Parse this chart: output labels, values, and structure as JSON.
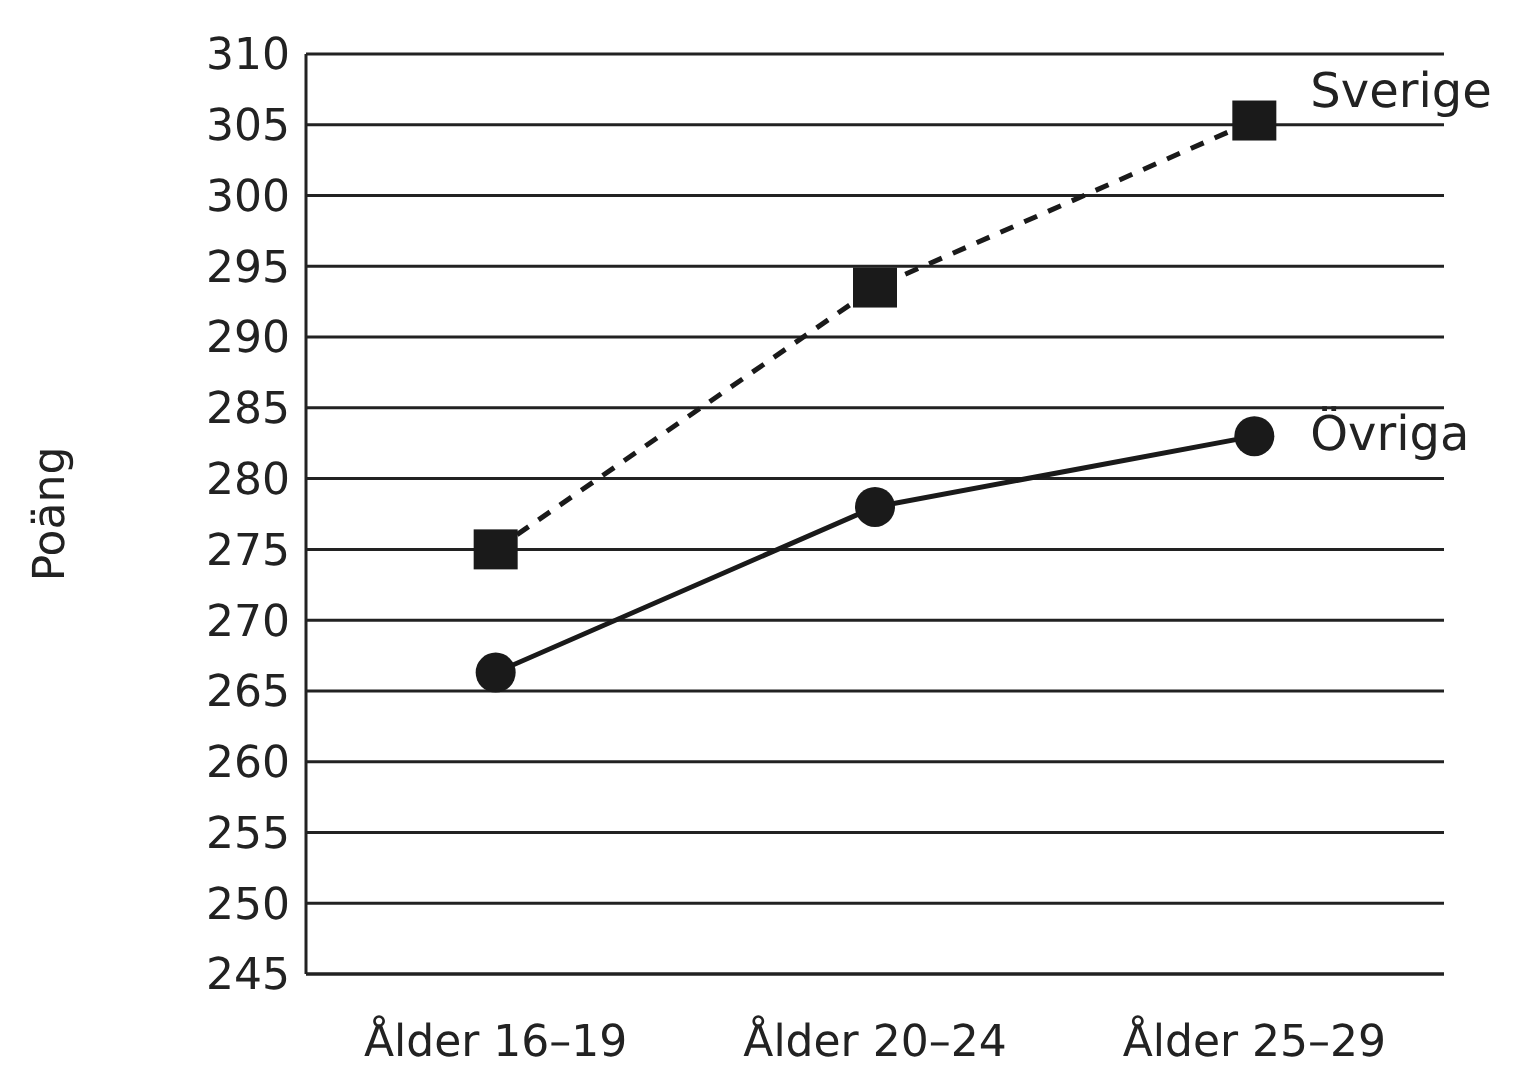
{
  "chart_data": {
    "type": "line",
    "ylabel": "Poäng",
    "categories": [
      "Ålder 16–19",
      "Ålder 20–24",
      "Ålder 25–29"
    ],
    "series": [
      {
        "name": "Sverige",
        "color": "#1a1a1a",
        "values": [
          275,
          293.5,
          305.3
        ],
        "marker": "square",
        "line_style": "dashed"
      },
      {
        "name": "Övriga",
        "color": "#1a1a1a",
        "values": [
          266.3,
          278,
          283
        ],
        "marker": "circle",
        "line_style": "solid"
      }
    ],
    "ylim": [
      245,
      310
    ],
    "yticks": [
      245,
      250,
      255,
      260,
      265,
      270,
      275,
      280,
      285,
      290,
      295,
      300,
      305,
      310
    ],
    "grid": "y"
  }
}
